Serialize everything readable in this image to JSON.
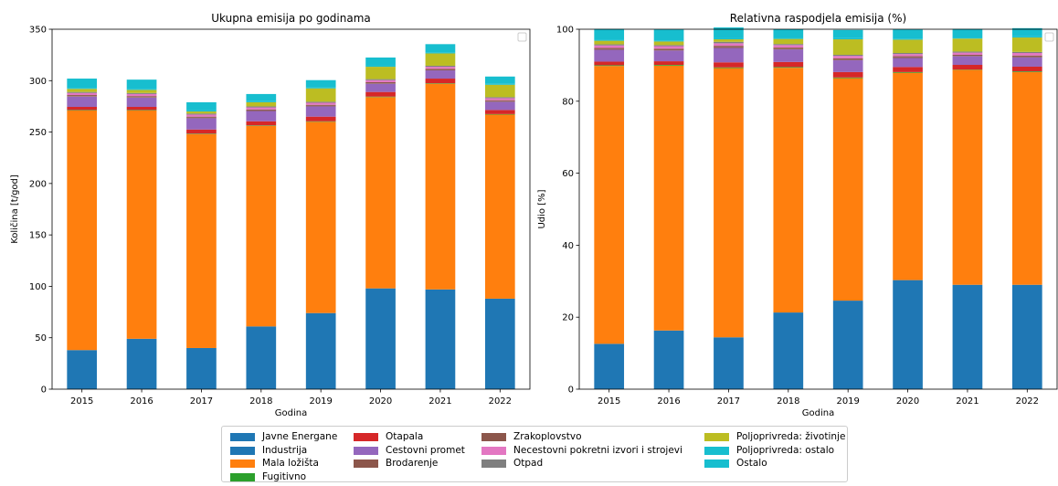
{
  "legend": {
    "items": [
      {
        "label": "Javne Energane",
        "color": "#1f77b4"
      },
      {
        "label": "Industrija",
        "color": "#1f77b4"
      },
      {
        "label": "Mala ložišta",
        "color": "#ff7f0e"
      },
      {
        "label": "Fugitivno",
        "color": "#2ca02c"
      },
      {
        "label": "Otapala",
        "color": "#d62728"
      },
      {
        "label": "Cestovni promet",
        "color": "#9467bd"
      },
      {
        "label": "Brodarenje",
        "color": "#8c564b"
      },
      {
        "label": "Zrakoplovstvo",
        "color": "#8c564b"
      },
      {
        "label": "Necestovni pokretni izvori i strojevi",
        "color": "#e377c2"
      },
      {
        "label": "Otpad",
        "color": "#7f7f7f"
      },
      {
        "label": "Poljoprivreda: životinje",
        "color": "#bcbd22"
      },
      {
        "label": "Poljoprivreda: ostalo",
        "color": "#17becf"
      },
      {
        "label": "Ostalo",
        "color": "#17becf"
      }
    ]
  },
  "chart_data": [
    {
      "type": "bar",
      "stacked": true,
      "title": "Ukupna emisija po godinama",
      "xlabel": "Godina",
      "ylabel": "Količina [t/god]",
      "ylim": [
        0,
        350
      ],
      "yticks": [
        "0",
        "50",
        "100",
        "150",
        "200",
        "250",
        "300",
        "350"
      ],
      "categories": [
        "2015",
        "2016",
        "2017",
        "2018",
        "2019",
        "2020",
        "2021",
        "2022"
      ],
      "series": [
        {
          "name": "Javne Energane",
          "color": "#1f77b4",
          "values": [
            38,
            49,
            40,
            61,
            74,
            98,
            97,
            88
          ]
        },
        {
          "name": "Industrija",
          "color": "#1f77b4",
          "values": [
            0,
            0,
            0,
            0,
            0,
            0,
            0,
            0
          ]
        },
        {
          "name": "Mala ložišta",
          "color": "#ff7f0e",
          "values": [
            233,
            222,
            208,
            195,
            186,
            186,
            200,
            179
          ]
        },
        {
          "name": "Fugitivno",
          "color": "#2ca02c",
          "values": [
            0.5,
            0.5,
            0.5,
            0.5,
            0.5,
            0.5,
            0.5,
            0.5
          ]
        },
        {
          "name": "Otapala",
          "color": "#d62728",
          "values": [
            3,
            3,
            4,
            4,
            4.5,
            4.5,
            4.5,
            4
          ]
        },
        {
          "name": "Cestovni promet",
          "color": "#9467bd",
          "values": [
            10,
            9,
            11,
            10,
            10,
            8,
            8,
            8
          ]
        },
        {
          "name": "Brodarenje",
          "color": "#8c564b",
          "values": [
            0.5,
            0.5,
            0.5,
            0.5,
            0.5,
            0.5,
            0.5,
            0.5
          ]
        },
        {
          "name": "Zrakoplovstvo",
          "color": "#8c564b",
          "values": [
            1,
            1,
            1,
            1,
            1,
            1,
            1,
            1
          ]
        },
        {
          "name": "Necestovni pokretni izvori i strojevi",
          "color": "#e377c2",
          "values": [
            2,
            2,
            2,
            2,
            2,
            2,
            2,
            2
          ]
        },
        {
          "name": "Otpad",
          "color": "#7f7f7f",
          "values": [
            1,
            1,
            1,
            1,
            1,
            1,
            1,
            1
          ]
        },
        {
          "name": "Poljoprivreda: životinje",
          "color": "#bcbd22",
          "values": [
            3,
            3,
            2,
            4,
            13,
            12,
            12,
            12
          ]
        },
        {
          "name": "Poljoprivreda: ostalo",
          "color": "#17becf",
          "values": [
            1,
            1,
            1,
            1,
            1,
            1,
            1,
            1
          ]
        },
        {
          "name": "Ostalo",
          "color": "#17becf",
          "values": [
            9,
            9,
            8,
            7,
            7,
            8,
            8,
            7
          ]
        }
      ]
    },
    {
      "type": "bar",
      "stacked": true,
      "title": "Relativna raspodjela emisija (%)",
      "xlabel": "Godina",
      "ylabel": "Udio [%]",
      "ylim": [
        0,
        100
      ],
      "yticks": [
        "0",
        "20",
        "40",
        "60",
        "80",
        "100"
      ],
      "categories": [
        "2015",
        "2016",
        "2017",
        "2018",
        "2019",
        "2020",
        "2021",
        "2022"
      ],
      "series": [
        {
          "name": "Javne Energane",
          "color": "#1f77b4",
          "values": [
            12.6,
            16.3,
            14.4,
            21.3,
            24.6,
            30.3,
            29.0,
            29.0
          ]
        },
        {
          "name": "Industrija",
          "color": "#1f77b4",
          "values": [
            0,
            0,
            0,
            0,
            0,
            0,
            0,
            0
          ]
        },
        {
          "name": "Mala ložišta",
          "color": "#ff7f0e",
          "values": [
            77.2,
            73.6,
            74.8,
            68.0,
            61.8,
            57.6,
            59.7,
            59.1
          ]
        },
        {
          "name": "Fugitivno",
          "color": "#2ca02c",
          "values": [
            0.2,
            0.2,
            0.2,
            0.2,
            0.2,
            0.2,
            0.1,
            0.2
          ]
        },
        {
          "name": "Otapala",
          "color": "#d62728",
          "values": [
            1.0,
            1.0,
            1.4,
            1.4,
            1.5,
            1.4,
            1.3,
            1.3
          ]
        },
        {
          "name": "Cestovni promet",
          "color": "#9467bd",
          "values": [
            3.3,
            3.0,
            4.0,
            3.5,
            3.3,
            2.5,
            2.4,
            2.6
          ]
        },
        {
          "name": "Brodarenje",
          "color": "#8c564b",
          "values": [
            0.2,
            0.2,
            0.2,
            0.2,
            0.2,
            0.2,
            0.1,
            0.2
          ]
        },
        {
          "name": "Zrakoplovstvo",
          "color": "#8c564b",
          "values": [
            0.3,
            0.3,
            0.4,
            0.3,
            0.3,
            0.3,
            0.3,
            0.3
          ]
        },
        {
          "name": "Necestovni pokretni izvori i strojevi",
          "color": "#e377c2",
          "values": [
            0.7,
            0.7,
            0.7,
            0.7,
            0.7,
            0.6,
            0.6,
            0.7
          ]
        },
        {
          "name": "Otpad",
          "color": "#7f7f7f",
          "values": [
            0.3,
            0.3,
            0.4,
            0.3,
            0.3,
            0.3,
            0.3,
            0.3
          ]
        },
        {
          "name": "Poljoprivreda: životinje",
          "color": "#bcbd22",
          "values": [
            1.0,
            1.0,
            0.7,
            1.4,
            4.3,
            3.7,
            3.6,
            4.0
          ]
        },
        {
          "name": "Poljoprivreda: ostalo",
          "color": "#17becf",
          "values": [
            0.3,
            0.3,
            0.4,
            0.3,
            0.3,
            0.3,
            0.3,
            0.3
          ]
        },
        {
          "name": "Ostalo",
          "color": "#17becf",
          "values": [
            3.0,
            3.0,
            2.9,
            2.4,
            2.3,
            2.5,
            2.4,
            2.3
          ]
        }
      ]
    }
  ]
}
